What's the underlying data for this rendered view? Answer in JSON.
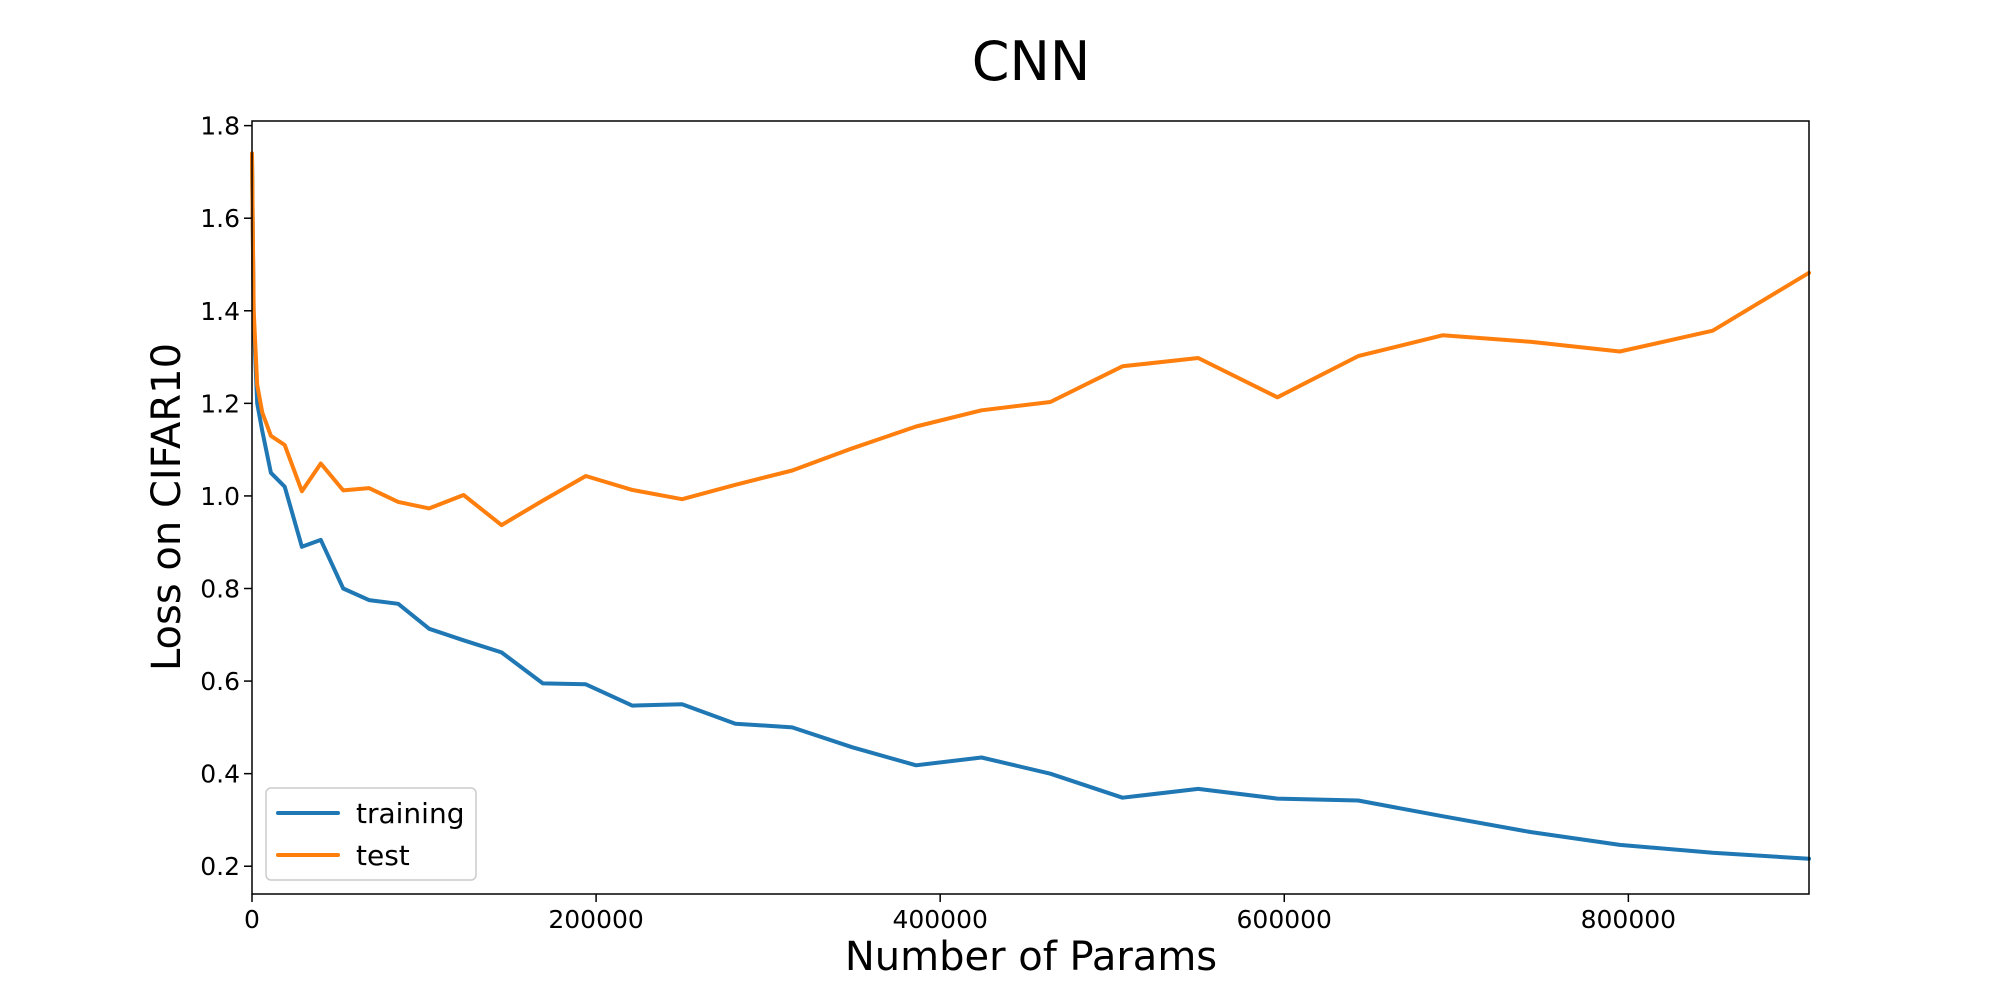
{
  "chart_data": {
    "type": "line",
    "title": "CNN",
    "xlabel": "Number of Params",
    "ylabel": "Loss on CIFAR10",
    "xlim": [
      0,
      905000
    ],
    "ylim": [
      0.14,
      1.81
    ],
    "x_ticks": [
      0,
      200000,
      400000,
      600000,
      800000
    ],
    "x_tick_labels": [
      "0",
      "200000",
      "400000",
      "600000",
      "800000"
    ],
    "y_ticks": [
      0.2,
      0.4,
      0.6,
      0.8,
      1.0,
      1.2,
      1.4,
      1.6,
      1.8
    ],
    "y_tick_labels": [
      "0.2",
      "0.4",
      "0.6",
      "0.8",
      "1.0",
      "1.2",
      "1.4",
      "1.6",
      "1.8"
    ],
    "grid": false,
    "legend_position": "lower-left",
    "series": [
      {
        "name": "training",
        "color": "#1f77b4",
        "x": [
          0,
          1000,
          3000,
          6000,
          11000,
          19000,
          29000,
          40000,
          53000,
          68000,
          85000,
          103000,
          123000,
          145000,
          169000,
          194000,
          221000,
          250000,
          281000,
          314000,
          349000,
          386000,
          424000,
          464000,
          506000,
          550000,
          596000,
          643000,
          692000,
          743000,
          795000,
          849000,
          905000
        ],
        "y": [
          1.73,
          1.38,
          1.2,
          1.14,
          1.05,
          1.02,
          0.89,
          0.905,
          0.8,
          0.775,
          0.767,
          0.713,
          0.688,
          0.662,
          0.595,
          0.593,
          0.547,
          0.55,
          0.508,
          0.5,
          0.457,
          0.418,
          0.435,
          0.4,
          0.348,
          0.367,
          0.346,
          0.342,
          0.308,
          0.274,
          0.246,
          0.229,
          0.216
        ]
      },
      {
        "name": "test",
        "color": "#ff7f0e",
        "x": [
          0,
          1000,
          3000,
          6000,
          11000,
          19000,
          29000,
          40000,
          53000,
          68000,
          85000,
          103000,
          123000,
          145000,
          169000,
          194000,
          221000,
          250000,
          281000,
          314000,
          349000,
          386000,
          424000,
          464000,
          506000,
          550000,
          596000,
          643000,
          692000,
          743000,
          795000,
          849000,
          905000
        ],
        "y": [
          1.74,
          1.4,
          1.24,
          1.18,
          1.13,
          1.11,
          1.01,
          1.07,
          1.012,
          1.017,
          0.987,
          0.973,
          1.002,
          0.937,
          0.99,
          1.043,
          1.013,
          0.993,
          1.024,
          1.055,
          1.103,
          1.15,
          1.185,
          1.203,
          1.28,
          1.298,
          1.213,
          1.302,
          1.347,
          1.333,
          1.312,
          1.357,
          1.482
        ]
      }
    ]
  }
}
